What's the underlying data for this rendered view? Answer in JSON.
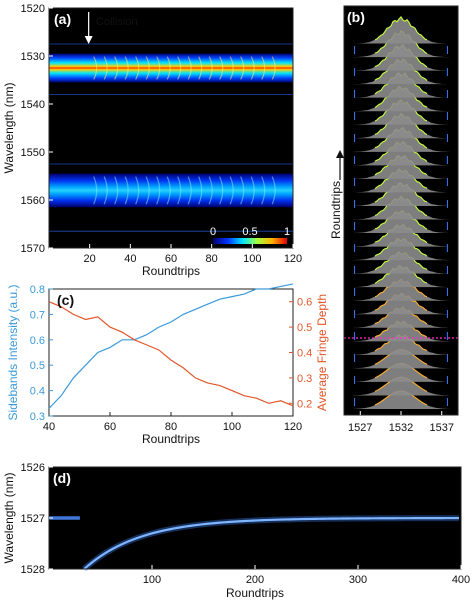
{
  "panels": {
    "a": {
      "label": "(a)",
      "annotation": "Collision",
      "colorbar_ticks": [
        "0",
        "0.5",
        "1"
      ]
    },
    "b": {
      "label": "(b)",
      "y_arrow_label": "Roundtrips"
    },
    "c": {
      "label": "(c)"
    },
    "d": {
      "label": "(d)"
    }
  },
  "colors": {
    "blue_series": "#3a9ad9",
    "orange_series": "#e0562a",
    "dashed_line": "#ff2ad4",
    "hot": "#ffd000",
    "cold": "#00006a"
  },
  "chart_data": [
    {
      "id": "a",
      "type": "heatmap",
      "xlabel": "Roundtrips",
      "ylabel": "Wavelength (nm)",
      "xlim": [
        0,
        120
      ],
      "ylim": [
        1570,
        1520
      ],
      "x_ticks": [
        20,
        40,
        60,
        80,
        100,
        120
      ],
      "y_ticks": [
        1520,
        1530,
        1540,
        1550,
        1560,
        1570
      ],
      "bands": [
        {
          "center_nm": 1532.5,
          "halfwidth_nm": 3,
          "peak": 1.0
        },
        {
          "center_nm": 1558,
          "halfwidth_nm": 3.5,
          "peak": 0.55
        }
      ],
      "collision_roundtrip": 20,
      "colorbar": {
        "min": 0,
        "max": 1
      }
    },
    {
      "id": "b",
      "type": "area",
      "xlabel": "",
      "ylabel": "Roundtrips",
      "x_ticks": [
        1527,
        1532,
        1537
      ],
      "xlim": [
        1525,
        1539
      ],
      "spectrum_center_nm": 1532,
      "traces": 28
    },
    {
      "id": "c",
      "type": "line",
      "xlabel": "Roundtrips",
      "ylabel_left": "Sidebands Intensity (a.u.)",
      "ylabel_right": "Average Fringe Depth",
      "xlim": [
        40,
        120
      ],
      "ylim_left": [
        0.3,
        0.8
      ],
      "ylim_right": [
        0.15,
        0.65
      ],
      "x_ticks": [
        40,
        60,
        80,
        100,
        120
      ],
      "y_ticks_left": [
        0.3,
        0.4,
        0.5,
        0.6,
        0.7,
        0.8
      ],
      "y_ticks_right": [
        0.2,
        0.3,
        0.4,
        0.5,
        0.6
      ],
      "x": [
        40,
        44,
        48,
        52,
        56,
        60,
        64,
        68,
        72,
        76,
        80,
        84,
        88,
        92,
        96,
        100,
        104,
        108,
        112,
        116,
        120
      ],
      "series": [
        {
          "name": "Sidebands Intensity (a.u.)",
          "axis": "left",
          "values": [
            0.33,
            0.38,
            0.45,
            0.5,
            0.55,
            0.57,
            0.6,
            0.6,
            0.62,
            0.65,
            0.67,
            0.7,
            0.72,
            0.74,
            0.76,
            0.77,
            0.78,
            0.8,
            0.8,
            0.81,
            0.82
          ]
        },
        {
          "name": "Average Fringe Depth",
          "axis": "right",
          "values": [
            0.6,
            0.58,
            0.55,
            0.53,
            0.54,
            0.5,
            0.48,
            0.45,
            0.43,
            0.41,
            0.37,
            0.34,
            0.3,
            0.28,
            0.27,
            0.25,
            0.23,
            0.22,
            0.2,
            0.21,
            0.19
          ]
        }
      ]
    },
    {
      "id": "d",
      "type": "heatmap",
      "xlabel": "Roundtrips",
      "ylabel": "Wavelength (nm)",
      "xlim": [
        0,
        400
      ],
      "ylim": [
        1526,
        1528
      ],
      "x_ticks": [
        100,
        200,
        300,
        400
      ],
      "y_ticks": [
        1526,
        1527,
        1528
      ],
      "trace": {
        "start_nm": 1527.0,
        "dip_nm": 1527.9,
        "dip_roundtrip": 40,
        "end_nm": 1527.0
      }
    }
  ]
}
